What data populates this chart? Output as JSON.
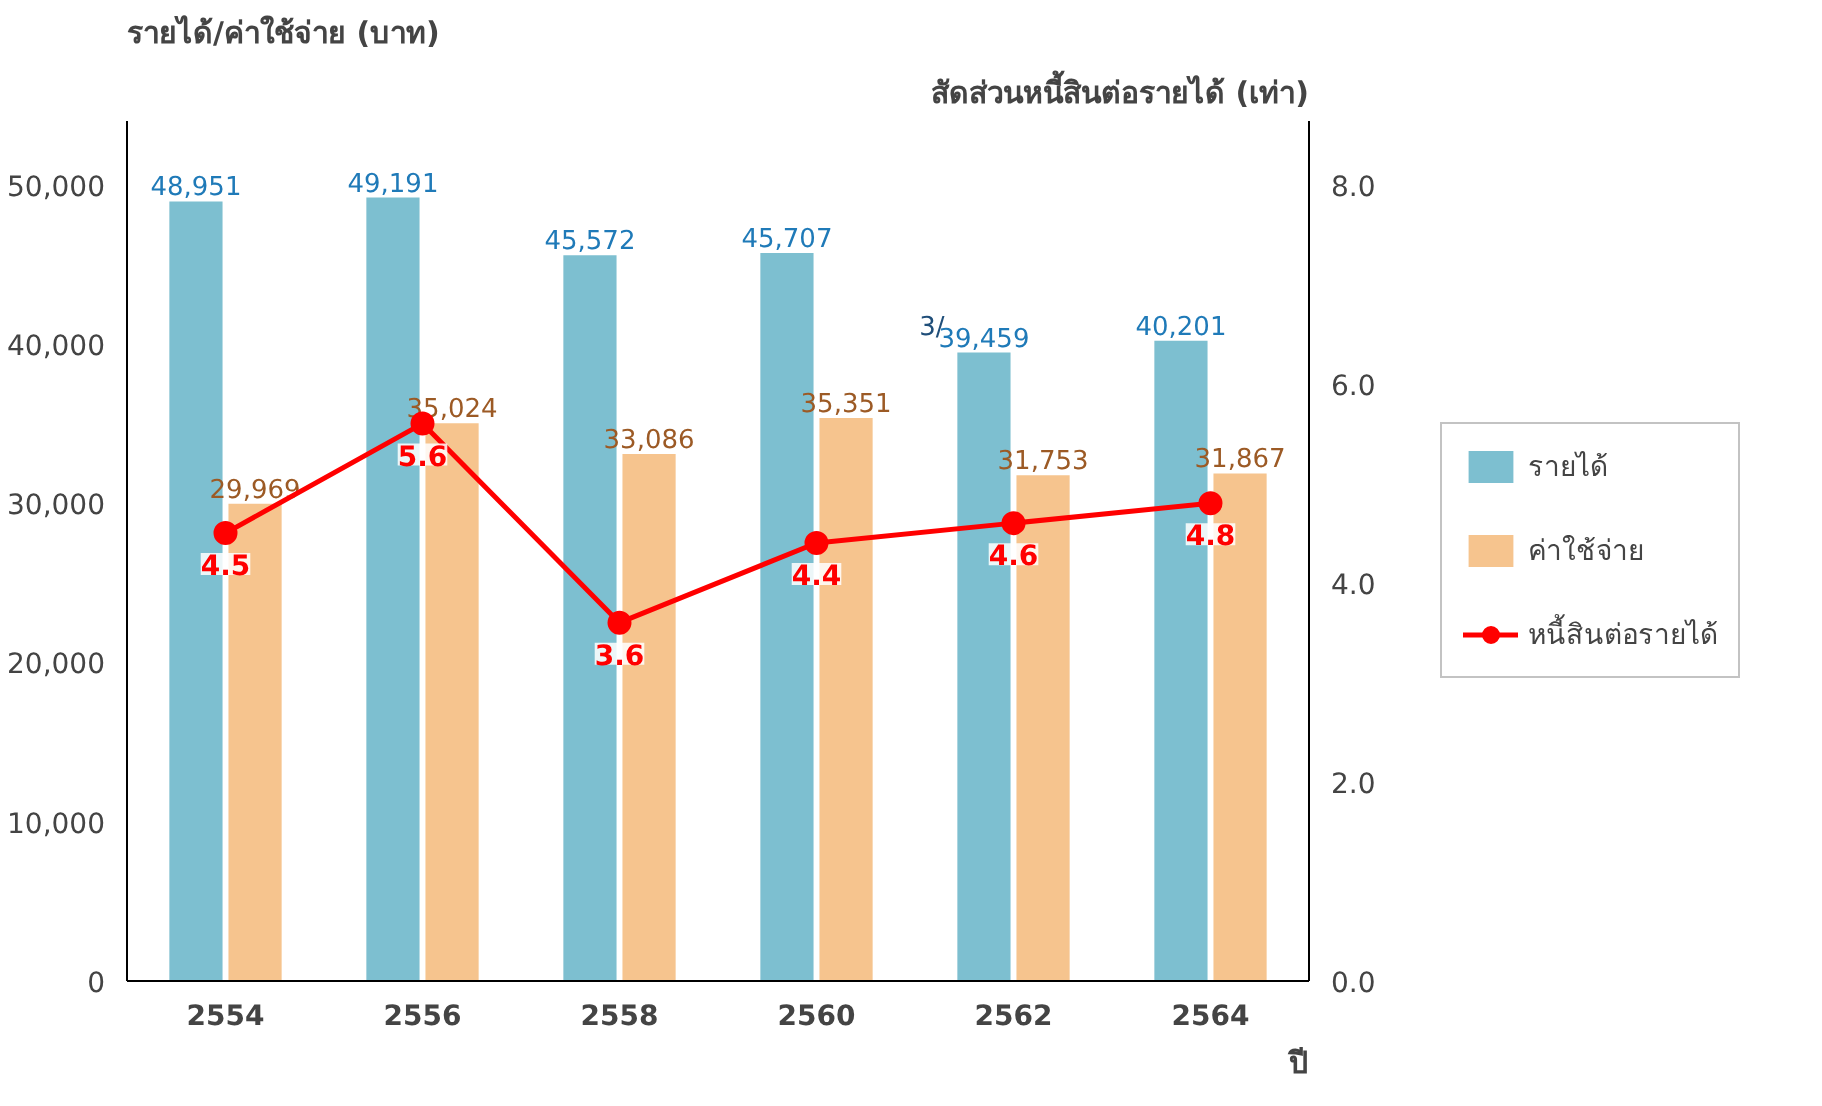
{
  "chart_data": {
    "type": "bar",
    "ylabel": "รายได้/ค่าใช้จ่าย (บาท)",
    "y2label": "สัดส่วนหนี้สินต่อรายได้ (เท่า)",
    "xlabel": "ปี",
    "categories": [
      "2554",
      "2556",
      "2558",
      "2560",
      "2562",
      "2564"
    ],
    "series": [
      {
        "name": "รายได้",
        "color": "#7dbfd0",
        "values": [
          48951,
          49191,
          45572,
          45707,
          39459,
          40201
        ],
        "value_labels": [
          "48,951",
          "49,191",
          "45,572",
          "45,707",
          "39,459",
          "40,201"
        ]
      },
      {
        "name": "ค่าใช้จ่าย",
        "color": "#f6c48e",
        "values": [
          29969,
          35024,
          33086,
          35351,
          31753,
          31867
        ],
        "value_labels": [
          "29,969",
          "35,024",
          "33,086",
          "35,351",
          "31,753",
          "31,867"
        ]
      },
      {
        "name": "หนี้สินต่อรายได้",
        "type": "line",
        "axis": "y2",
        "color": "#ff0000",
        "values": [
          4.5,
          5.6,
          3.6,
          4.4,
          4.6,
          4.8
        ]
      }
    ],
    "ylim": [
      0,
      54000
    ],
    "yticks": [
      {
        "value": 0,
        "label": "0"
      },
      {
        "value": 10000,
        "label": "10,000"
      },
      {
        "value": 20000,
        "label": "20,000"
      },
      {
        "value": 30000,
        "label": "30,000"
      },
      {
        "value": 40000,
        "label": "40,000"
      },
      {
        "value": 50000,
        "label": "50,000"
      }
    ],
    "y2lim": [
      0,
      8.64
    ],
    "y2ticks": [
      {
        "value": 0,
        "label": "0.0"
      },
      {
        "value": 2,
        "label": "2.0"
      },
      {
        "value": 4,
        "label": "4.0"
      },
      {
        "value": 6,
        "label": "6.0"
      },
      {
        "value": 8,
        "label": "8.0"
      }
    ],
    "annotations": [
      {
        "text": "3/",
        "x": "2562",
        "y": 39459
      }
    ],
    "data_labels": true,
    "marker": "circle",
    "grid": false,
    "legend": "right"
  }
}
